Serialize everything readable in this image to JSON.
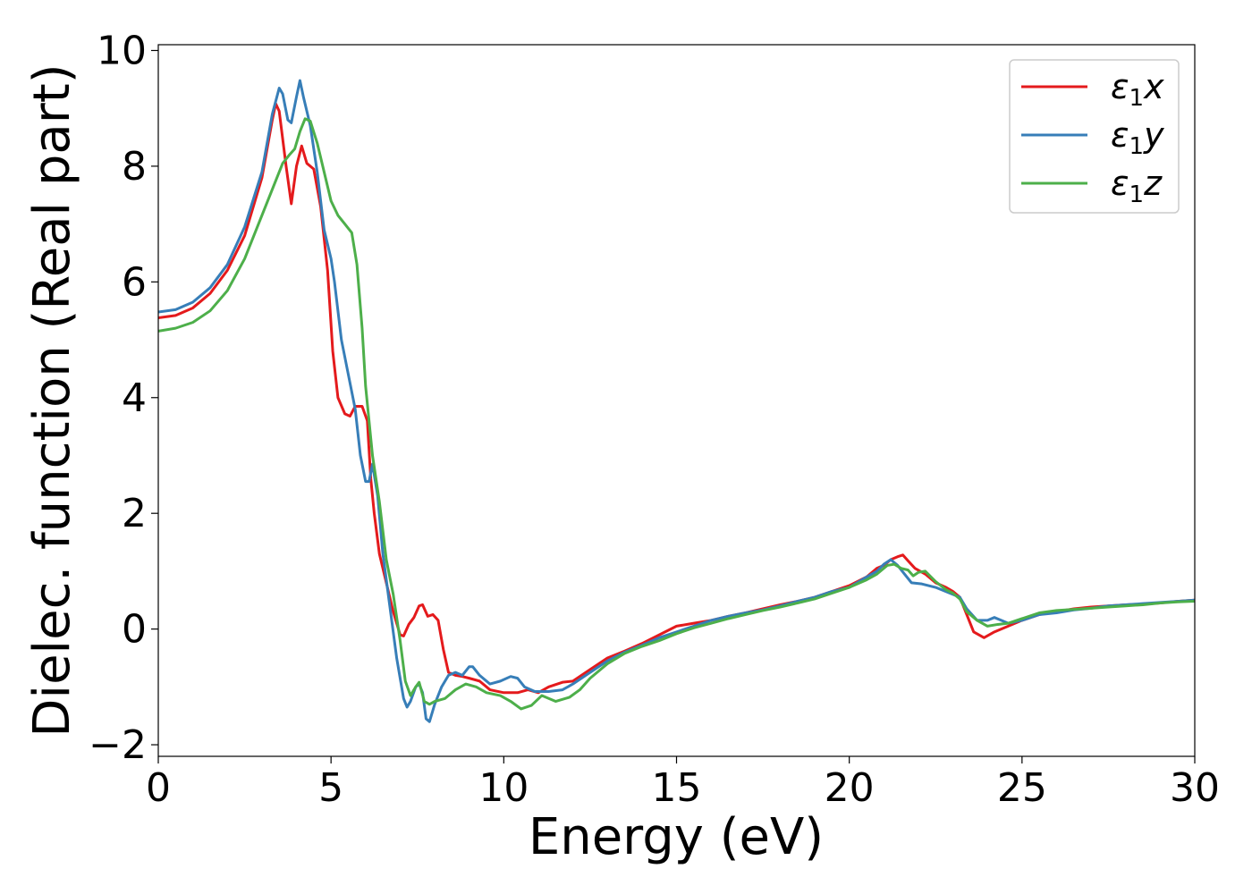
{
  "chart_data": {
    "type": "line",
    "title": "",
    "xlabel": "Energy (eV)",
    "ylabel": "Dielec. function (Real part)",
    "xlim": [
      0,
      30
    ],
    "ylim": [
      -2.2,
      10.1
    ],
    "xticks": [
      0,
      5,
      10,
      15,
      20,
      25,
      30
    ],
    "xtick_labels": [
      "0",
      "5",
      "10",
      "15",
      "20",
      "25",
      "30"
    ],
    "yticks": [
      -2,
      0,
      2,
      4,
      6,
      8,
      10
    ],
    "ytick_labels": [
      "−2",
      "0",
      "2",
      "4",
      "6",
      "8",
      "10"
    ],
    "grid": false,
    "legend": {
      "position": "top-right",
      "entries": [
        {
          "symbol": "ε",
          "sub": "1",
          "var": "x"
        },
        {
          "symbol": "ε",
          "sub": "1",
          "var": "y"
        },
        {
          "symbol": "ε",
          "sub": "1",
          "var": "z"
        }
      ]
    },
    "series": [
      {
        "color": "#e41a1c",
        "points": [
          [
            0,
            5.38
          ],
          [
            0.5,
            5.42
          ],
          [
            1,
            5.55
          ],
          [
            1.5,
            5.8
          ],
          [
            2,
            6.2
          ],
          [
            2.5,
            6.8
          ],
          [
            3,
            7.8
          ],
          [
            3.3,
            8.8
          ],
          [
            3.4,
            9.08
          ],
          [
            3.5,
            8.95
          ],
          [
            3.7,
            8.0
          ],
          [
            3.85,
            7.35
          ],
          [
            4.0,
            8.0
          ],
          [
            4.15,
            8.35
          ],
          [
            4.3,
            8.05
          ],
          [
            4.5,
            7.95
          ],
          [
            4.7,
            7.3
          ],
          [
            4.9,
            6.2
          ],
          [
            5.05,
            4.8
          ],
          [
            5.2,
            4.0
          ],
          [
            5.4,
            3.72
          ],
          [
            5.55,
            3.68
          ],
          [
            5.7,
            3.85
          ],
          [
            5.9,
            3.85
          ],
          [
            6.05,
            3.6
          ],
          [
            6.15,
            2.6
          ],
          [
            6.25,
            2.0
          ],
          [
            6.4,
            1.3
          ],
          [
            6.6,
            0.8
          ],
          [
            6.8,
            0.3
          ],
          [
            7.0,
            -0.1
          ],
          [
            7.1,
            -0.12
          ],
          [
            7.25,
            0.08
          ],
          [
            7.4,
            0.2
          ],
          [
            7.55,
            0.4
          ],
          [
            7.65,
            0.42
          ],
          [
            7.8,
            0.22
          ],
          [
            7.95,
            0.25
          ],
          [
            8.1,
            0.15
          ],
          [
            8.25,
            -0.35
          ],
          [
            8.4,
            -0.75
          ],
          [
            8.6,
            -0.8
          ],
          [
            8.8,
            -0.82
          ],
          [
            9.0,
            -0.85
          ],
          [
            9.3,
            -0.9
          ],
          [
            9.6,
            -1.05
          ],
          [
            10.0,
            -1.1
          ],
          [
            10.4,
            -1.1
          ],
          [
            10.7,
            -1.05
          ],
          [
            11.0,
            -1.1
          ],
          [
            11.3,
            -1.0
          ],
          [
            11.7,
            -0.92
          ],
          [
            12.0,
            -0.9
          ],
          [
            12.5,
            -0.7
          ],
          [
            13.0,
            -0.5
          ],
          [
            13.5,
            -0.38
          ],
          [
            14.0,
            -0.25
          ],
          [
            14.5,
            -0.1
          ],
          [
            15.0,
            0.05
          ],
          [
            15.5,
            0.1
          ],
          [
            16.0,
            0.15
          ],
          [
            16.5,
            0.22
          ],
          [
            17.0,
            0.28
          ],
          [
            17.5,
            0.35
          ],
          [
            18.0,
            0.42
          ],
          [
            18.5,
            0.48
          ],
          [
            19.0,
            0.55
          ],
          [
            19.5,
            0.65
          ],
          [
            20.0,
            0.75
          ],
          [
            20.5,
            0.9
          ],
          [
            20.8,
            1.05
          ],
          [
            21.0,
            1.1
          ],
          [
            21.2,
            1.2
          ],
          [
            21.4,
            1.25
          ],
          [
            21.55,
            1.28
          ],
          [
            21.7,
            1.18
          ],
          [
            21.9,
            1.05
          ],
          [
            22.2,
            0.95
          ],
          [
            22.5,
            0.8
          ],
          [
            22.8,
            0.72
          ],
          [
            23.0,
            0.65
          ],
          [
            23.2,
            0.55
          ],
          [
            23.4,
            0.25
          ],
          [
            23.6,
            -0.05
          ],
          [
            23.9,
            -0.15
          ],
          [
            24.2,
            -0.05
          ],
          [
            24.6,
            0.05
          ],
          [
            25.0,
            0.15
          ],
          [
            25.5,
            0.25
          ],
          [
            26.0,
            0.3
          ],
          [
            26.5,
            0.35
          ],
          [
            27.0,
            0.38
          ],
          [
            27.5,
            0.4
          ],
          [
            28.0,
            0.42
          ],
          [
            28.5,
            0.43
          ],
          [
            29.0,
            0.45
          ],
          [
            29.5,
            0.48
          ],
          [
            30.0,
            0.5
          ]
        ]
      },
      {
        "color": "#377eb8",
        "points": [
          [
            0,
            5.48
          ],
          [
            0.5,
            5.52
          ],
          [
            1,
            5.65
          ],
          [
            1.5,
            5.9
          ],
          [
            2,
            6.3
          ],
          [
            2.5,
            6.95
          ],
          [
            3,
            7.9
          ],
          [
            3.3,
            8.9
          ],
          [
            3.5,
            9.35
          ],
          [
            3.6,
            9.25
          ],
          [
            3.75,
            8.8
          ],
          [
            3.85,
            8.75
          ],
          [
            4.0,
            9.2
          ],
          [
            4.1,
            9.48
          ],
          [
            4.2,
            9.2
          ],
          [
            4.4,
            8.7
          ],
          [
            4.6,
            7.9
          ],
          [
            4.8,
            6.9
          ],
          [
            5.0,
            6.4
          ],
          [
            5.1,
            6.0
          ],
          [
            5.3,
            5.0
          ],
          [
            5.5,
            4.4
          ],
          [
            5.7,
            3.8
          ],
          [
            5.85,
            3.0
          ],
          [
            6.0,
            2.55
          ],
          [
            6.1,
            2.55
          ],
          [
            6.2,
            2.85
          ],
          [
            6.35,
            2.3
          ],
          [
            6.5,
            1.3
          ],
          [
            6.7,
            0.4
          ],
          [
            6.9,
            -0.5
          ],
          [
            7.1,
            -1.2
          ],
          [
            7.2,
            -1.35
          ],
          [
            7.3,
            -1.25
          ],
          [
            7.45,
            -1.0
          ],
          [
            7.55,
            -0.95
          ],
          [
            7.65,
            -1.1
          ],
          [
            7.75,
            -1.55
          ],
          [
            7.85,
            -1.6
          ],
          [
            8.0,
            -1.3
          ],
          [
            8.2,
            -1.0
          ],
          [
            8.4,
            -0.8
          ],
          [
            8.6,
            -0.75
          ],
          [
            8.8,
            -0.8
          ],
          [
            9.0,
            -0.65
          ],
          [
            9.1,
            -0.65
          ],
          [
            9.3,
            -0.8
          ],
          [
            9.6,
            -0.95
          ],
          [
            9.9,
            -0.9
          ],
          [
            10.2,
            -0.82
          ],
          [
            10.4,
            -0.85
          ],
          [
            10.6,
            -1.0
          ],
          [
            10.9,
            -1.08
          ],
          [
            11.3,
            -1.08
          ],
          [
            11.7,
            -1.05
          ],
          [
            12.0,
            -0.95
          ],
          [
            12.5,
            -0.75
          ],
          [
            13.0,
            -0.55
          ],
          [
            13.5,
            -0.4
          ],
          [
            14.0,
            -0.28
          ],
          [
            14.5,
            -0.15
          ],
          [
            15.0,
            -0.05
          ],
          [
            15.5,
            0.05
          ],
          [
            16.0,
            0.15
          ],
          [
            16.5,
            0.22
          ],
          [
            17.0,
            0.28
          ],
          [
            17.5,
            0.33
          ],
          [
            18.0,
            0.4
          ],
          [
            18.5,
            0.48
          ],
          [
            19.0,
            0.55
          ],
          [
            19.5,
            0.65
          ],
          [
            20.0,
            0.72
          ],
          [
            20.5,
            0.9
          ],
          [
            20.8,
            1.0
          ],
          [
            21.0,
            1.12
          ],
          [
            21.2,
            1.2
          ],
          [
            21.4,
            1.1
          ],
          [
            21.6,
            0.95
          ],
          [
            21.8,
            0.8
          ],
          [
            22.1,
            0.78
          ],
          [
            22.5,
            0.72
          ],
          [
            23.0,
            0.6
          ],
          [
            23.2,
            0.55
          ],
          [
            23.4,
            0.35
          ],
          [
            23.7,
            0.15
          ],
          [
            24.0,
            0.15
          ],
          [
            24.2,
            0.2
          ],
          [
            24.4,
            0.15
          ],
          [
            24.6,
            0.1
          ],
          [
            25.0,
            0.15
          ],
          [
            25.5,
            0.25
          ],
          [
            26.0,
            0.28
          ],
          [
            26.5,
            0.33
          ],
          [
            27.0,
            0.36
          ],
          [
            27.5,
            0.4
          ],
          [
            28.0,
            0.42
          ],
          [
            28.5,
            0.44
          ],
          [
            29.0,
            0.46
          ],
          [
            29.5,
            0.48
          ],
          [
            30.0,
            0.5
          ]
        ]
      },
      {
        "color": "#4daf4a",
        "points": [
          [
            0,
            5.15
          ],
          [
            0.5,
            5.2
          ],
          [
            1,
            5.3
          ],
          [
            1.5,
            5.5
          ],
          [
            2,
            5.85
          ],
          [
            2.5,
            6.4
          ],
          [
            3,
            7.15
          ],
          [
            3.3,
            7.6
          ],
          [
            3.6,
            8.05
          ],
          [
            3.8,
            8.2
          ],
          [
            3.95,
            8.3
          ],
          [
            4.1,
            8.6
          ],
          [
            4.25,
            8.82
          ],
          [
            4.4,
            8.78
          ],
          [
            4.6,
            8.4
          ],
          [
            4.8,
            7.9
          ],
          [
            5.0,
            7.4
          ],
          [
            5.2,
            7.15
          ],
          [
            5.4,
            7.0
          ],
          [
            5.6,
            6.85
          ],
          [
            5.75,
            6.3
          ],
          [
            5.9,
            5.2
          ],
          [
            6.0,
            4.2
          ],
          [
            6.2,
            3.0
          ],
          [
            6.4,
            2.2
          ],
          [
            6.6,
            1.2
          ],
          [
            6.8,
            0.6
          ],
          [
            7.0,
            -0.2
          ],
          [
            7.15,
            -0.9
          ],
          [
            7.3,
            -1.15
          ],
          [
            7.45,
            -1.0
          ],
          [
            7.55,
            -0.92
          ],
          [
            7.7,
            -1.25
          ],
          [
            7.85,
            -1.3
          ],
          [
            8.0,
            -1.25
          ],
          [
            8.3,
            -1.2
          ],
          [
            8.6,
            -1.05
          ],
          [
            8.9,
            -0.95
          ],
          [
            9.2,
            -1.0
          ],
          [
            9.5,
            -1.1
          ],
          [
            9.9,
            -1.15
          ],
          [
            10.2,
            -1.25
          ],
          [
            10.5,
            -1.38
          ],
          [
            10.8,
            -1.32
          ],
          [
            11.1,
            -1.15
          ],
          [
            11.5,
            -1.25
          ],
          [
            11.9,
            -1.18
          ],
          [
            12.2,
            -1.05
          ],
          [
            12.5,
            -0.85
          ],
          [
            13.0,
            -0.6
          ],
          [
            13.5,
            -0.42
          ],
          [
            14.0,
            -0.3
          ],
          [
            14.5,
            -0.2
          ],
          [
            15.0,
            -0.08
          ],
          [
            15.5,
            0.02
          ],
          [
            16.0,
            0.1
          ],
          [
            16.5,
            0.18
          ],
          [
            17.0,
            0.25
          ],
          [
            17.5,
            0.32
          ],
          [
            18.0,
            0.38
          ],
          [
            18.5,
            0.45
          ],
          [
            19.0,
            0.52
          ],
          [
            19.5,
            0.62
          ],
          [
            20.0,
            0.72
          ],
          [
            20.5,
            0.85
          ],
          [
            20.8,
            0.95
          ],
          [
            21.1,
            1.1
          ],
          [
            21.3,
            1.12
          ],
          [
            21.5,
            1.05
          ],
          [
            21.7,
            1.02
          ],
          [
            21.85,
            0.92
          ],
          [
            22.0,
            0.98
          ],
          [
            22.2,
            1.0
          ],
          [
            22.5,
            0.82
          ],
          [
            22.8,
            0.68
          ],
          [
            23.0,
            0.62
          ],
          [
            23.2,
            0.52
          ],
          [
            23.4,
            0.3
          ],
          [
            23.7,
            0.15
          ],
          [
            24.0,
            0.05
          ],
          [
            24.3,
            0.08
          ],
          [
            24.6,
            0.1
          ],
          [
            25.0,
            0.18
          ],
          [
            25.5,
            0.28
          ],
          [
            26.0,
            0.32
          ],
          [
            26.5,
            0.34
          ],
          [
            27.0,
            0.36
          ],
          [
            27.5,
            0.38
          ],
          [
            28.0,
            0.4
          ],
          [
            28.5,
            0.42
          ],
          [
            29.0,
            0.45
          ],
          [
            29.5,
            0.47
          ],
          [
            30.0,
            0.48
          ]
        ]
      }
    ]
  }
}
